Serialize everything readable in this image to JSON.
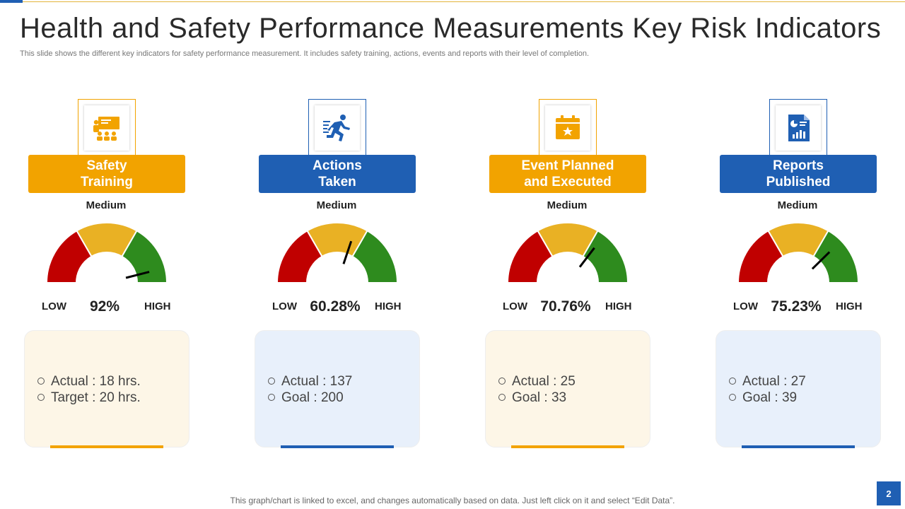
{
  "slide": {
    "title": "Health and Safety Performance Measurements Key Risk Indicators",
    "subtitle": "This slide shows the different key indicators for safety performance measurement. It includes safety training, actions, events and reports with their level of completion.",
    "footer": "This graph/chart is linked to excel, and changes automatically based on data. Just left click on it and select “Edit Data”.",
    "page_number": "2"
  },
  "colors": {
    "orange": "#f2a300",
    "blue": "#1f5fb3",
    "gauge_red": "#c00000",
    "gauge_yellow": "#e9b124",
    "gauge_green": "#2e8b1e",
    "panel_cream": "#fdf6e7",
    "panel_blue": "#e8f0fb"
  },
  "cards": [
    {
      "title_line1": "Safety",
      "title_line2": "Training",
      "icon": "training-presentation-icon",
      "level": "Medium",
      "low_label": "LOW",
      "high_label": "HIGH",
      "percent_label": "92%",
      "percent_value": 92,
      "line1": "Actual : 18 hrs.",
      "line2": "Target : 20 hrs."
    },
    {
      "title_line1": "Actions",
      "title_line2": "Taken",
      "icon": "running-person-icon",
      "level": "Medium",
      "low_label": "LOW",
      "high_label": "HIGH",
      "percent_label": "60.28%",
      "percent_value": 60.28,
      "line1": "Actual : 137",
      "line2": "Goal : 200"
    },
    {
      "title_line1": "Event Planned",
      "title_line2": "and Executed",
      "icon": "calendar-star-icon",
      "level": "Medium",
      "low_label": "LOW",
      "high_label": "HIGH",
      "percent_label": "70.76%",
      "percent_value": 70.76,
      "line1": "Actual : 25",
      "line2": "Goal : 33"
    },
    {
      "title_line1": "Reports",
      "title_line2": "Published",
      "icon": "report-document-icon",
      "level": "Medium",
      "low_label": "LOW",
      "high_label": "HIGH",
      "percent_label": "75.23%",
      "percent_value": 75.23,
      "line1": "Actual : 27",
      "line2": "Goal : 39"
    }
  ]
}
